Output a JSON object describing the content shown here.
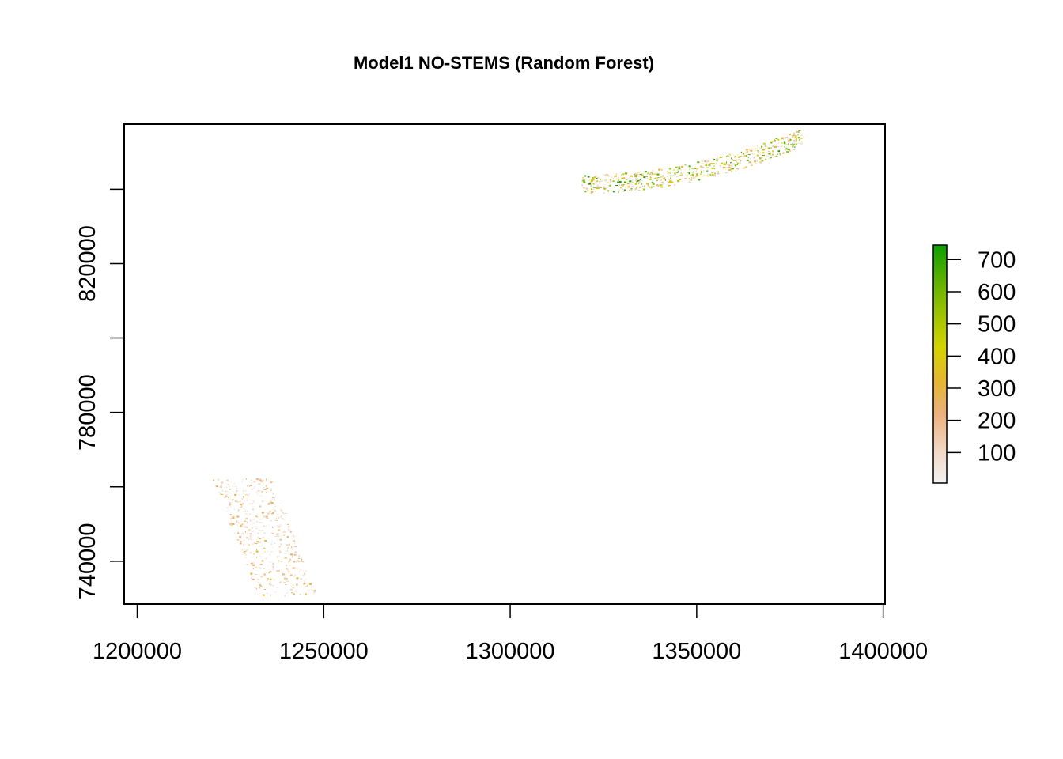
{
  "chart_data": {
    "type": "heatmap",
    "title": "Model1 NO-STEMS (Random Forest)",
    "xlabel": "",
    "ylabel": "",
    "xlim": [
      1196500,
      1400500
    ],
    "ylim": [
      728500,
      857500
    ],
    "x_ticks": [
      1200000,
      1250000,
      1300000,
      1350000,
      1400000
    ],
    "x_tick_labels": [
      "1200000",
      "1250000",
      "1300000",
      "1350000",
      "1400000"
    ],
    "y_ticks": [
      740000,
      760000,
      780000,
      800000,
      820000,
      840000
    ],
    "y_tick_labels": [
      "740000",
      "",
      "780000",
      "",
      "820000",
      ""
    ],
    "legend": {
      "placement": "right",
      "min": 5,
      "max": 745,
      "ticks": [
        100,
        200,
        300,
        400,
        500,
        600,
        700
      ],
      "tick_labels": [
        "100",
        "200",
        "300",
        "400",
        "500",
        "600",
        "700"
      ],
      "colors": [
        "#f2f2f2",
        "#f2d6c2",
        "#ecb17e",
        "#e6b530",
        "#d4d400",
        "#9cc200",
        "#5bb000",
        "#0aa000"
      ]
    },
    "clusters": [
      {
        "name": "south-west",
        "x_range": [
          1222000,
          1246000
        ],
        "y_range": [
          731000,
          762500
        ],
        "value_range": [
          5,
          330
        ]
      },
      {
        "name": "north-east",
        "x_range": [
          1319000,
          1378000
        ],
        "y_range": [
          839000,
          856000
        ],
        "value_range": [
          5,
          745
        ]
      }
    ]
  }
}
